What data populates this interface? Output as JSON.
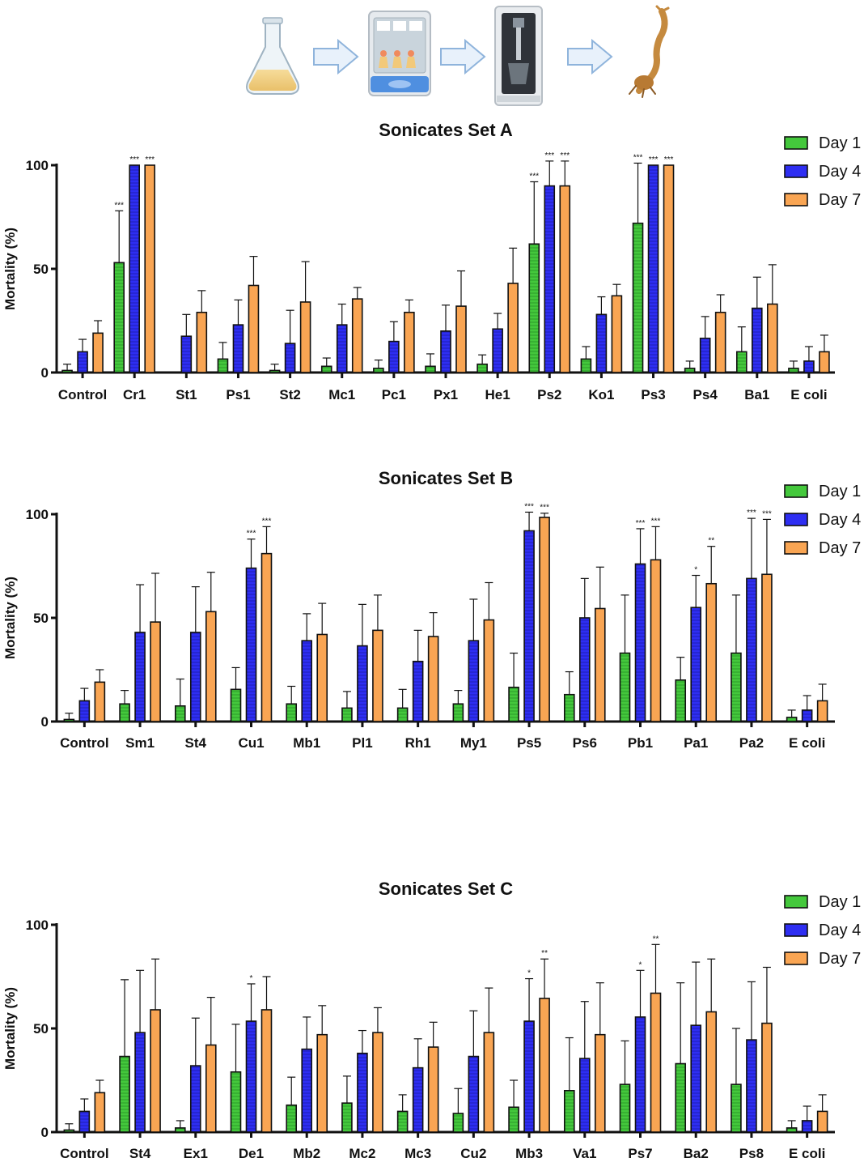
{
  "workflow": {
    "steps": [
      "flask-icon",
      "incubator-icon",
      "sonicator-icon",
      "mosquito-larva-icon"
    ]
  },
  "colors": {
    "day1_fill": "#44c83c",
    "day4_fill": "#2e2ef2",
    "day7_fill": "#f9a553",
    "axis": "#111111",
    "arrow_fill": "#e8f1fb",
    "arrow_stroke": "#8fb4dc"
  },
  "chart_data": [
    {
      "type": "bar",
      "title": "Sonicates Set A",
      "ylabel": "Mortality (%)",
      "xlabel": "",
      "ylim": [
        0,
        100
      ],
      "yticks": [
        "0",
        "50",
        "100"
      ],
      "legend_position": "top-right",
      "categories": [
        "Control",
        "Cr1",
        "St1",
        "Ps1",
        "St2",
        "Mc1",
        "Pc1",
        "Px1",
        "He1",
        "Ps2",
        "Ko1",
        "Ps3",
        "Ps4",
        "Ba1",
        "E coli"
      ],
      "series": [
        {
          "name": "Day 1",
          "values": [
            1,
            53,
            0,
            6.5,
            1,
            3,
            2,
            3,
            4,
            62,
            6.5,
            72,
            2,
            10,
            2
          ],
          "errors": [
            3,
            25,
            0,
            8,
            3,
            4,
            4,
            6,
            4.5,
            30,
            6,
            29,
            3.5,
            12,
            3.5
          ],
          "sig": [
            "",
            "***",
            "",
            "",
            "",
            "",
            "",
            "",
            "",
            "***",
            "",
            "***",
            "",
            "",
            ""
          ]
        },
        {
          "name": "Day 4",
          "values": [
            10,
            100,
            17.5,
            23,
            14,
            23,
            15,
            20,
            21,
            90,
            28,
            100,
            16.5,
            31,
            5.5
          ],
          "errors": [
            6,
            0,
            10.5,
            12,
            16,
            10,
            9.5,
            12.5,
            7.5,
            12,
            8.5,
            0,
            10.5,
            15,
            7
          ],
          "sig": [
            "",
            "***",
            "",
            "",
            "",
            "",
            "",
            "",
            "",
            "***",
            "",
            "***",
            "",
            "",
            ""
          ]
        },
        {
          "name": "Day 7",
          "values": [
            19,
            100,
            29,
            42,
            34,
            35.5,
            29,
            32,
            43,
            90,
            37,
            100,
            29,
            33,
            10
          ],
          "errors": [
            6,
            0,
            10.5,
            14,
            19.5,
            5.5,
            6,
            17,
            17,
            12,
            5.5,
            0,
            8.5,
            19,
            8
          ],
          "sig": [
            "",
            "***",
            "",
            "",
            "",
            "",
            "",
            "",
            "",
            "***",
            "",
            "***",
            "",
            "",
            ""
          ]
        }
      ]
    },
    {
      "type": "bar",
      "title": "Sonicates Set B",
      "ylabel": "Mortality (%)",
      "xlabel": "",
      "ylim": [
        0,
        100
      ],
      "yticks": [
        "0",
        "50",
        "100"
      ],
      "legend_position": "top-right",
      "categories": [
        "Control",
        "Sm1",
        "St4",
        "Cu1",
        "Mb1",
        "Pl1",
        "Rh1",
        "My1",
        "Ps5",
        "Ps6",
        "Pb1",
        "Pa1",
        "Pa2",
        "E coli"
      ],
      "series": [
        {
          "name": "Day 1",
          "values": [
            1,
            8.5,
            7.5,
            15.5,
            8.5,
            6.5,
            6.5,
            8.5,
            16.5,
            13,
            33,
            20,
            33,
            2
          ],
          "errors": [
            3,
            6.5,
            13,
            10.5,
            8.5,
            8,
            9,
            6.5,
            16.5,
            11,
            28,
            11,
            28,
            3.5
          ],
          "sig": [
            "",
            "",
            "",
            "",
            "",
            "",
            "",
            "",
            "",
            "",
            "",
            "",
            "",
            ""
          ]
        },
        {
          "name": "Day 4",
          "values": [
            10,
            43,
            43,
            74,
            39,
            36.5,
            29,
            39,
            92,
            50,
            76,
            55,
            69,
            5.5
          ],
          "errors": [
            6,
            23,
            22,
            14,
            13,
            20,
            15,
            20,
            9,
            19,
            17,
            15.5,
            29,
            7
          ],
          "sig": [
            "",
            "",
            "",
            "***",
            "",
            "",
            "",
            "",
            "***",
            "",
            "***",
            "*",
            "***",
            ""
          ]
        },
        {
          "name": "Day 7",
          "values": [
            19,
            48,
            53,
            81,
            42,
            44,
            41,
            49,
            98.5,
            54.5,
            78,
            66.5,
            71,
            10
          ],
          "errors": [
            6,
            23.5,
            19,
            13,
            15,
            17,
            11.5,
            18,
            2,
            20,
            16,
            18,
            26.5,
            8
          ],
          "sig": [
            "",
            "",
            "",
            "***",
            "",
            "",
            "",
            "",
            "***",
            "",
            "***",
            "**",
            "***",
            ""
          ]
        }
      ]
    },
    {
      "type": "bar",
      "title": "Sonicates Set C",
      "ylabel": "Mortality (%)",
      "xlabel": "",
      "ylim": [
        0,
        100
      ],
      "yticks": [
        "0",
        "50",
        "100"
      ],
      "legend_position": "top-right",
      "categories": [
        "Control",
        "St4",
        "Ex1",
        "De1",
        "Mb2",
        "Mc2",
        "Mc3",
        "Cu2",
        "Mb3",
        "Va1",
        "Ps7",
        "Ba2",
        "Ps8",
        "E coli"
      ],
      "series": [
        {
          "name": "Day 1",
          "values": [
            1,
            36.5,
            2,
            29,
            13,
            14,
            10,
            9,
            12,
            20,
            23,
            33,
            23,
            2
          ],
          "errors": [
            3,
            37,
            3.5,
            23,
            13.5,
            13,
            8,
            12,
            13,
            25.5,
            21,
            39,
            27,
            3.5
          ],
          "sig": [
            "",
            "",
            "",
            "",
            "",
            "",
            "",
            "",
            "",
            "",
            "",
            "",
            "",
            ""
          ]
        },
        {
          "name": "Day 4",
          "values": [
            10,
            48,
            32,
            53.5,
            40,
            38,
            31,
            36.5,
            53.5,
            35.5,
            55.5,
            51.5,
            44.5,
            5.5
          ],
          "errors": [
            6,
            30,
            23,
            18,
            15.5,
            11,
            14,
            22,
            20.5,
            27.5,
            22.5,
            30.5,
            28,
            7
          ],
          "sig": [
            "",
            "",
            "",
            "*",
            "",
            "",
            "",
            "",
            "*",
            "",
            "*",
            "",
            "",
            ""
          ]
        },
        {
          "name": "Day 7",
          "values": [
            19,
            59,
            42,
            59,
            47,
            48,
            41,
            48,
            64.5,
            47,
            67,
            58,
            52.5,
            10
          ],
          "errors": [
            6,
            24.5,
            23,
            16,
            14,
            12,
            12,
            21.5,
            19,
            25,
            23.5,
            25.5,
            27,
            8
          ],
          "sig": [
            "",
            "",
            "",
            "",
            "",
            "",
            "",
            "",
            "**",
            "",
            "**",
            "",
            "",
            ""
          ]
        }
      ]
    }
  ]
}
